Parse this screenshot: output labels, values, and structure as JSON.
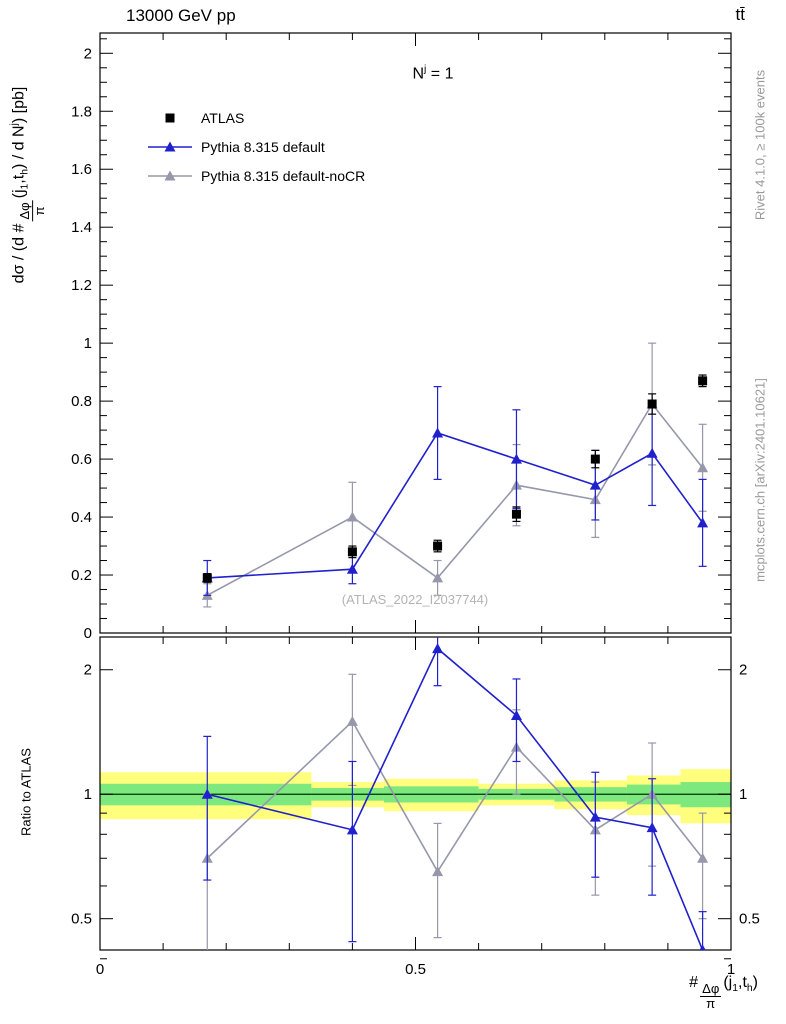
{
  "header": {
    "left": "13000 GeV pp",
    "right": "tt̄"
  },
  "annotation": {
    "base": "N",
    "sup": "j",
    "rest": " = 1"
  },
  "legend": {
    "items": [
      {
        "label": "ATLAS",
        "color": "#000000",
        "marker": "square",
        "line": false
      },
      {
        "label": "Pythia 8.315 default",
        "color": "#2020cc",
        "marker": "triangle",
        "line": true
      },
      {
        "label": "Pythia 8.315 default-noCR",
        "color": "#9797ab",
        "marker": "triangle",
        "line": true
      }
    ]
  },
  "watermark": "(ATLAS_2022_I2037744)",
  "side_texts": {
    "rivet": "Rivet 4.1.0, ≥ 100k events",
    "mcplots": "mcplots.cern.ch [arXiv:2401.10621]"
  },
  "labels": {
    "ratio_y": "Ratio to ATLAS",
    "main_y": {
      "pre": "dσ / (d #",
      "frac_num": "Δφ",
      "frac_den": "π",
      "a1": "(j",
      "s1": "1",
      "a2": ",t",
      "s2": "h",
      "a3": ") / d N",
      "sup": "j",
      "a4": ") [pb]"
    },
    "x": {
      "pre": "#",
      "frac_num": "Δφ",
      "frac_den": "π",
      "a1": "(j",
      "s1": "1",
      "a2": ",t",
      "s2": "h",
      "a3": ")"
    }
  },
  "chart_data": {
    "type": "line",
    "title": "13000 GeV pp, ttbar, N^j = 1",
    "x_axis": {
      "range": [
        0,
        1
      ],
      "ticks": [
        0,
        0.5,
        1
      ],
      "minor_step": 0.1
    },
    "main_panel": {
      "ylabel": "dσ / (d #Δφ/π(j_1,t_h) / d N^j) [pb]",
      "y_range": [
        0,
        2.07
      ],
      "y_ticks": [
        0,
        0.2,
        0.4,
        0.6,
        0.8,
        1,
        1.2,
        1.4,
        1.6,
        1.8,
        2
      ],
      "y_minor_step": 0.05,
      "series": [
        {
          "name": "Pythia 8.315 default-noCR",
          "color": "#9797ab",
          "marker": "triangle",
          "line": true,
          "x": [
            0.17,
            0.4,
            0.535,
            0.66,
            0.785,
            0.875,
            0.955
          ],
          "y": [
            0.13,
            0.4,
            0.19,
            0.51,
            0.46,
            0.79,
            0.57
          ],
          "yerr": [
            0.04,
            0.12,
            0.06,
            0.14,
            0.13,
            0.21,
            0.15
          ]
        },
        {
          "name": "Pythia 8.315 default",
          "color": "#2020cc",
          "marker": "triangle",
          "line": true,
          "x": [
            0.17,
            0.4,
            0.535,
            0.66,
            0.785,
            0.875,
            0.955
          ],
          "y": [
            0.19,
            0.22,
            0.69,
            0.6,
            0.51,
            0.62,
            0.38
          ],
          "yerr": [
            0.06,
            0.05,
            0.16,
            0.17,
            0.12,
            0.18,
            0.15
          ]
        },
        {
          "name": "ATLAS",
          "color": "#000000",
          "marker": "square",
          "line": false,
          "x": [
            0.17,
            0.4,
            0.535,
            0.66,
            0.785,
            0.875,
            0.955
          ],
          "y": [
            0.19,
            0.28,
            0.3,
            0.41,
            0.6,
            0.79,
            0.87
          ],
          "yerr": [
            0.015,
            0.02,
            0.02,
            0.025,
            0.03,
            0.035,
            0.02
          ]
        }
      ]
    },
    "ratio_panel": {
      "ylabel": "Ratio to ATLAS",
      "y_scale": "log",
      "y_range": [
        0.42,
        2.4
      ],
      "y_ticks": [
        0.5,
        1,
        2
      ],
      "y_minor_ticks": [
        0.4,
        0.6,
        0.7,
        0.8,
        0.9
      ],
      "reference": {
        "value": 1,
        "color": "#003300"
      },
      "bands": {
        "edges": [
          0,
          0.335,
          0.45,
          0.6,
          0.72,
          0.835,
          0.92,
          1
        ],
        "yellow": [
          [
            0.87,
            1.13
          ],
          [
            0.93,
            1.07
          ],
          [
            0.91,
            1.09
          ],
          [
            0.94,
            1.06
          ],
          [
            0.92,
            1.08
          ],
          [
            0.89,
            1.11
          ],
          [
            0.85,
            1.15
          ]
        ],
        "green": [
          [
            0.94,
            1.06
          ],
          [
            0.965,
            1.035
          ],
          [
            0.955,
            1.045
          ],
          [
            0.97,
            1.03
          ],
          [
            0.96,
            1.04
          ],
          [
            0.945,
            1.055
          ],
          [
            0.93,
            1.07
          ]
        ],
        "yellow_color": "#ffff7d",
        "green_color": "#7de87d"
      },
      "series": [
        {
          "name": "Pythia 8.315 default-noCR",
          "color": "#9797ab",
          "marker": "triangle",
          "line": true,
          "x": [
            0.17,
            0.4,
            0.535,
            0.66,
            0.785,
            0.875,
            0.955
          ],
          "y": [
            0.7,
            1.5,
            0.65,
            1.3,
            0.82,
            1.0,
            0.7
          ],
          "yerr": [
            0.3,
            0.45,
            0.2,
            0.3,
            0.25,
            0.33,
            0.2
          ]
        },
        {
          "name": "Pythia 8.315 default",
          "color": "#2020cc",
          "marker": "triangle",
          "line": true,
          "x": [
            0.17,
            0.4,
            0.535,
            0.66,
            0.785,
            0.875,
            0.955
          ],
          "y": [
            1.0,
            0.82,
            2.25,
            1.55,
            0.88,
            0.83,
            0.42
          ],
          "yerr": [
            0.38,
            0.38,
            0.42,
            0.35,
            0.25,
            0.26,
            0.1
          ]
        }
      ]
    }
  }
}
